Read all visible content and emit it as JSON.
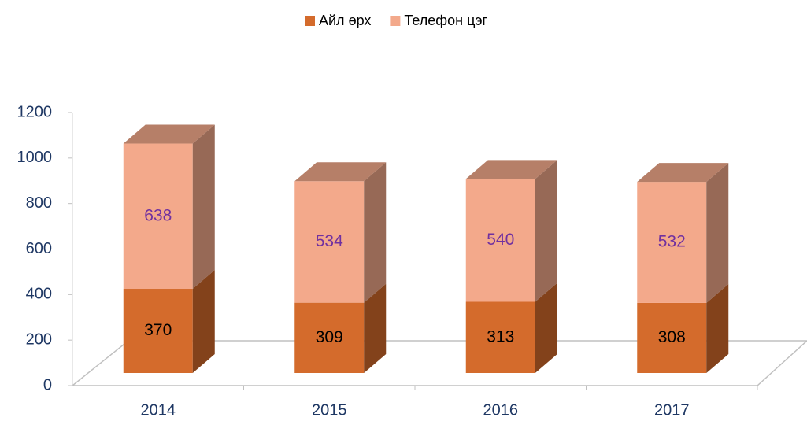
{
  "chart_data": {
    "type": "bar3d_stacked",
    "categories": [
      "2014",
      "2015",
      "2016",
      "2017"
    ],
    "series": [
      {
        "name": "Айл өрх",
        "color": "#d46b2c",
        "values": [
          370,
          309,
          313,
          308
        ]
      },
      {
        "name": "Телефон цэг",
        "color": "#f3a98b",
        "values": [
          638,
          534,
          540,
          532
        ]
      }
    ],
    "ylim": [
      0,
      1200
    ],
    "yticks": [
      0,
      200,
      400,
      600,
      800,
      1000,
      1200
    ],
    "legend": "top"
  }
}
